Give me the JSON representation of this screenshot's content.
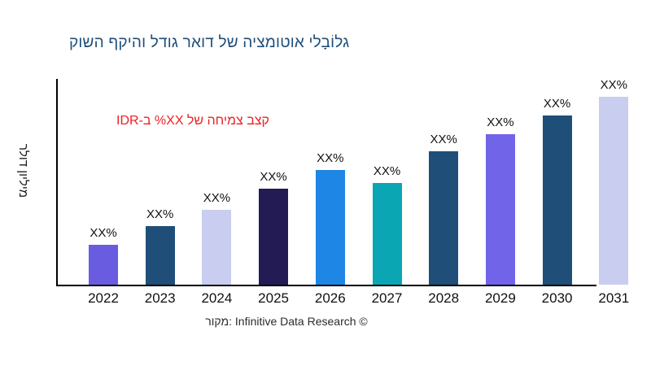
{
  "header": {
    "title": "גלוֹבָלי אוטומציה של דואר גודל והיקף השוק",
    "title_color": "#1f4e79"
  },
  "annotation": {
    "text": "קצב צמיחה של XX% ב-IDR",
    "color": "#ed2024"
  },
  "axes": {
    "ylabel": "מיליון דולר",
    "axis_color": "#000000",
    "y_tick_labels": "none",
    "grid": false
  },
  "footer": {
    "source": "מקור: Infinitive Data Research ©"
  },
  "chart_data": {
    "type": "bar",
    "title": "גלוֹבָלי אוטומציה של דואר גודל והיקף השוק",
    "ylabel": "מיליון דולר",
    "xlabel": "",
    "categories": [
      "2022",
      "2023",
      "2024",
      "2025",
      "2026",
      "2027",
      "2028",
      "2029",
      "2030",
      "2031"
    ],
    "values": [
      21,
      31,
      40,
      51,
      61,
      54,
      71,
      80,
      90,
      100
    ],
    "values_note": "relative heights, 2031 = 100; numeric axis not labeled in chart",
    "value_labels": [
      "XX%",
      "XX%",
      "XX%",
      "XX%",
      "XX%",
      "XX%",
      "XX%",
      "XX%",
      "XX%",
      "XX%"
    ],
    "colors": [
      "#6a5ce0",
      "#1f4e79",
      "#c9cdf0",
      "#221b54",
      "#1e86e5",
      "#0aa6b4",
      "#1f4e79",
      "#7164e8",
      "#1f4e79",
      "#c9cdf0"
    ],
    "annotation": "קצב צמיחה של XX% ב-IDR",
    "source": "מקור: Infinitive Data Research ©",
    "ylim": [
      0,
      110
    ],
    "grid": false,
    "legend": "none"
  }
}
